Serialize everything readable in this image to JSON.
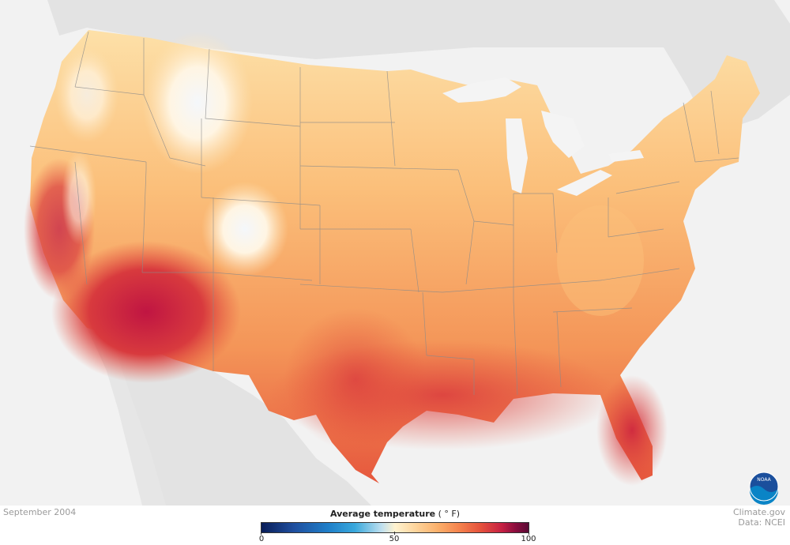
{
  "date": "September 2004",
  "legend": {
    "title": "Average temperature",
    "units": "( ° F)",
    "ticks": [
      "0",
      "50",
      "100"
    ],
    "colors": [
      "#081d58",
      "#1f7fc9",
      "#fff3d0",
      "#f5834d",
      "#c62043",
      "#5b0a35"
    ]
  },
  "credit": {
    "line1": "Climate.gov",
    "line2": "Data: NCEI"
  },
  "logo": {
    "text": "NOAA",
    "icon": "noaa-logo-icon"
  },
  "colors": {
    "background_land": "#e3e3e3",
    "ocean": "#f4f4f4",
    "state_border": "#8a8a8a"
  }
}
